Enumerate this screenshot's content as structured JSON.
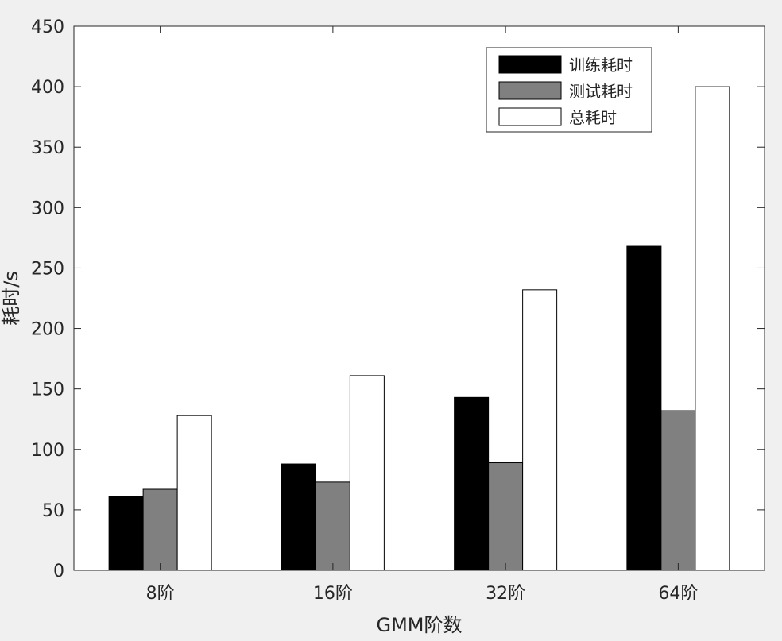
{
  "chart_data": {
    "type": "bar",
    "categories": [
      "8阶",
      "16阶",
      "32阶",
      "64阶"
    ],
    "series": [
      {
        "name": "训练耗时",
        "color": "#000000",
        "values": [
          61,
          88,
          143,
          268
        ]
      },
      {
        "name": "测试耗时",
        "color": "#808080",
        "values": [
          67,
          73,
          89,
          132
        ]
      },
      {
        "name": "总耗时",
        "color": "#ffffff",
        "values": [
          128,
          161,
          232,
          400
        ]
      }
    ],
    "xlabel": "GMM阶数",
    "ylabel": "耗时/s",
    "ylim": [
      0,
      450
    ],
    "yticks": [
      "0",
      "50",
      "100",
      "150",
      "200",
      "250",
      "300",
      "350",
      "400",
      "450"
    ],
    "legend_position": "top-right",
    "grid": false
  }
}
